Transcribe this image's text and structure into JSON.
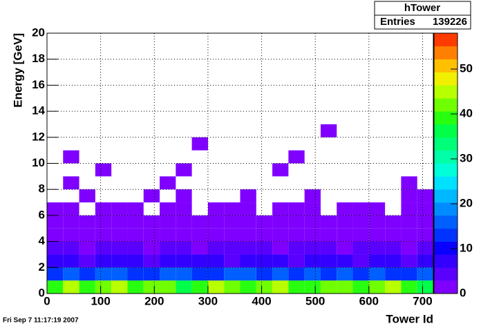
{
  "chart_data": {
    "type": "heatmap",
    "title": "hTower",
    "stats_label": "Entries",
    "stats_value": 139226,
    "x_label": "Tower Id",
    "y_label": "Energy [GeV]",
    "footer": "Fri Sep  7 11:17:19 2007",
    "xbins": [
      0,
      30,
      60,
      90,
      120,
      150,
      180,
      210,
      240,
      270,
      300,
      330,
      360,
      390,
      420,
      450,
      480,
      510,
      540,
      570,
      600,
      630,
      660,
      690,
      720
    ],
    "ybins": [
      0,
      1,
      2,
      3,
      4,
      5,
      6,
      7,
      8,
      9,
      10,
      11,
      12,
      13
    ],
    "z": [
      [
        40,
        44,
        38,
        42,
        45,
        39,
        41,
        43,
        37,
        40,
        44,
        42,
        38,
        41,
        45,
        40,
        39,
        43,
        42,
        38,
        41,
        44,
        40,
        36
      ],
      [
        14,
        16,
        13,
        15,
        17,
        14,
        12,
        16,
        15,
        13,
        14,
        17,
        15,
        14,
        16,
        13,
        15,
        14,
        16,
        12,
        15,
        14,
        13,
        15
      ],
      [
        6,
        7,
        5,
        6,
        8,
        6,
        5,
        7,
        6,
        6,
        7,
        5,
        6,
        8,
        6,
        5,
        7,
        6,
        6,
        5,
        7,
        6,
        5,
        6
      ],
      [
        3,
        3,
        2,
        3,
        4,
        3,
        2,
        3,
        3,
        2,
        3,
        3,
        4,
        3,
        2,
        3,
        3,
        3,
        2,
        3,
        4,
        3,
        2,
        3
      ],
      [
        2,
        2,
        1,
        2,
        2,
        2,
        1,
        2,
        2,
        1,
        2,
        2,
        2,
        1,
        2,
        2,
        2,
        1,
        2,
        2,
        2,
        1,
        2,
        2
      ],
      [
        1,
        1,
        1,
        1,
        2,
        1,
        1,
        1,
        1,
        1,
        1,
        2,
        1,
        1,
        1,
        1,
        2,
        1,
        1,
        1,
        1,
        1,
        1,
        1
      ],
      [
        1,
        1,
        0,
        1,
        1,
        1,
        0,
        1,
        1,
        0,
        1,
        1,
        1,
        0,
        1,
        1,
        1,
        0,
        1,
        1,
        1,
        0,
        1,
        1
      ],
      [
        0,
        0,
        1,
        0,
        0,
        0,
        1,
        0,
        1,
        0,
        0,
        0,
        1,
        0,
        0,
        0,
        1,
        0,
        0,
        0,
        0,
        0,
        1,
        1
      ],
      [
        0,
        1,
        0,
        0,
        0,
        0,
        0,
        1,
        0,
        0,
        0,
        0,
        0,
        0,
        0,
        0,
        0,
        0,
        0,
        0,
        0,
        0,
        1,
        0
      ],
      [
        0,
        0,
        0,
        1,
        0,
        0,
        0,
        0,
        1,
        0,
        0,
        0,
        0,
        0,
        1,
        0,
        0,
        0,
        0,
        0,
        0,
        0,
        0,
        0
      ],
      [
        0,
        1,
        0,
        0,
        0,
        0,
        0,
        0,
        0,
        0,
        0,
        0,
        0,
        0,
        0,
        1,
        0,
        0,
        0,
        0,
        0,
        0,
        0,
        0
      ],
      [
        0,
        0,
        0,
        0,
        0,
        0,
        0,
        0,
        0,
        1,
        0,
        0,
        0,
        0,
        0,
        0,
        0,
        0,
        0,
        0,
        0,
        0,
        0,
        0
      ],
      [
        0,
        0,
        0,
        0,
        0,
        0,
        0,
        0,
        0,
        0,
        0,
        0,
        0,
        0,
        0,
        0,
        0,
        1,
        0,
        0,
        0,
        0,
        0,
        0
      ]
    ],
    "xlim": [
      0,
      720
    ],
    "xticks": [
      0,
      100,
      200,
      300,
      400,
      500,
      600,
      700
    ],
    "ylim": [
      0,
      20
    ],
    "yticks": [
      0,
      2,
      4,
      6,
      8,
      10,
      12,
      14,
      16,
      18,
      20
    ],
    "zlim": [
      0,
      58
    ],
    "zticks": [
      0,
      10,
      20,
      30,
      40,
      50
    ],
    "palette": [
      "#7f00ff",
      "#5a00ff",
      "#3300ff",
      "#0a00ff",
      "#0033ff",
      "#0060ff",
      "#008cff",
      "#00b8ff",
      "#00e0ff",
      "#00ffd8",
      "#00ffa8",
      "#00ff78",
      "#00ff48",
      "#28ff10",
      "#70ff00",
      "#b8ff00",
      "#f0f000",
      "#ffc000",
      "#ff8000",
      "#ff3c00"
    ],
    "grid": true
  }
}
